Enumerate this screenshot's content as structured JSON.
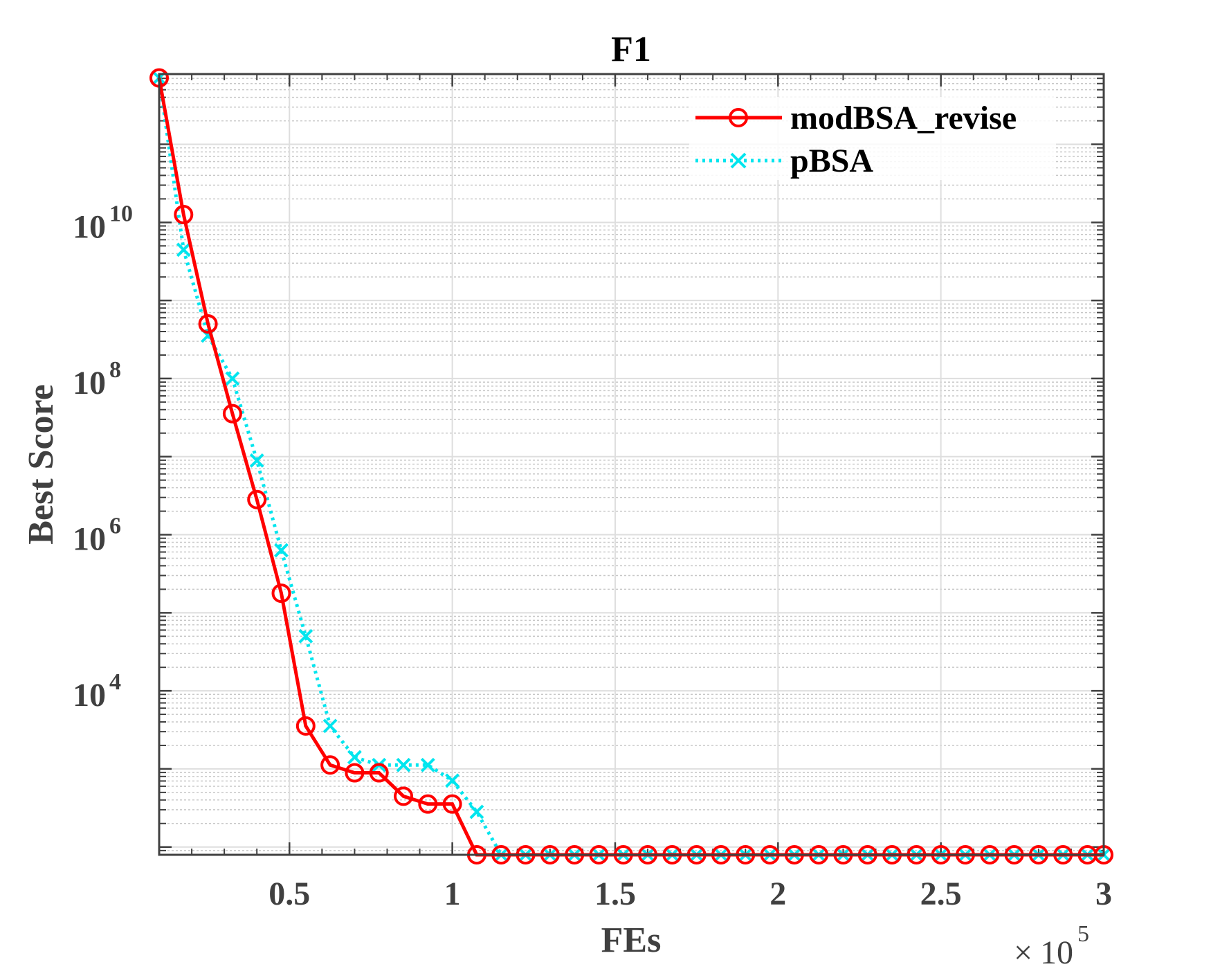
{
  "chart_data": {
    "type": "line",
    "title": "F1",
    "xlabel": "FEs",
    "ylabel": "Best Score",
    "x_exponent_label": "10",
    "x_exponent_power": "5",
    "x_multiplier_symbol": "×",
    "xlim": [
      0.1,
      3.0
    ],
    "ylim_log10": [
      1.9,
      11.9
    ],
    "yscale": "log",
    "grid": true,
    "legend_position": "top-right",
    "x_ticks": [
      {
        "value": 0.5,
        "label": "0.5"
      },
      {
        "value": 1,
        "label": "1"
      },
      {
        "value": 1.5,
        "label": "1.5"
      },
      {
        "value": 2,
        "label": "2"
      },
      {
        "value": 2.5,
        "label": "2.5"
      },
      {
        "value": 3,
        "label": "3"
      }
    ],
    "y_ticks": [
      {
        "exp": 4,
        "base": "10",
        "power": "4"
      },
      {
        "exp": 6,
        "base": "10",
        "power": "6"
      },
      {
        "exp": 8,
        "base": "10",
        "power": "8"
      },
      {
        "exp": 10,
        "base": "10",
        "power": "10"
      }
    ],
    "x": [
      0.1,
      0.175,
      0.25,
      0.325,
      0.4,
      0.475,
      0.55,
      0.625,
      0.7,
      0.775,
      0.85,
      0.925,
      1.0,
      1.075,
      1.15,
      1.225,
      1.3,
      1.375,
      1.45,
      1.525,
      1.6,
      1.675,
      1.75,
      1.825,
      1.9,
      1.975,
      2.05,
      2.125,
      2.2,
      2.275,
      2.35,
      2.425,
      2.5,
      2.575,
      2.65,
      2.725,
      2.8,
      2.875,
      2.95,
      3.0
    ],
    "series": [
      {
        "name": "modBSA_revise",
        "color": "#ff0000",
        "line_style": "solid",
        "marker": "circle",
        "log10_values": [
          11.85,
          10.1,
          8.7,
          7.55,
          6.45,
          5.25,
          3.55,
          3.05,
          2.95,
          2.95,
          2.65,
          2.55,
          2.55,
          1.9,
          1.9,
          1.9,
          1.9,
          1.9,
          1.9,
          1.9,
          1.9,
          1.9,
          1.9,
          1.9,
          1.9,
          1.9,
          1.9,
          1.9,
          1.9,
          1.9,
          1.9,
          1.9,
          1.9,
          1.9,
          1.9,
          1.9,
          1.9,
          1.9,
          1.9,
          1.9
        ]
      },
      {
        "name": "pBSA",
        "color": "#00e5ee",
        "line_style": "dotted",
        "marker": "x",
        "log10_values": [
          11.85,
          9.65,
          8.55,
          8.0,
          6.95,
          5.8,
          4.7,
          3.55,
          3.15,
          3.05,
          3.05,
          3.05,
          2.85,
          2.45,
          1.9,
          1.9,
          1.9,
          1.9,
          1.9,
          1.9,
          1.9,
          1.9,
          1.9,
          1.9,
          1.9,
          1.9,
          1.9,
          1.9,
          1.9,
          1.9,
          1.9,
          1.9,
          1.9,
          1.9,
          1.9,
          1.9,
          1.9,
          1.9,
          1.9,
          1.9
        ]
      }
    ]
  }
}
